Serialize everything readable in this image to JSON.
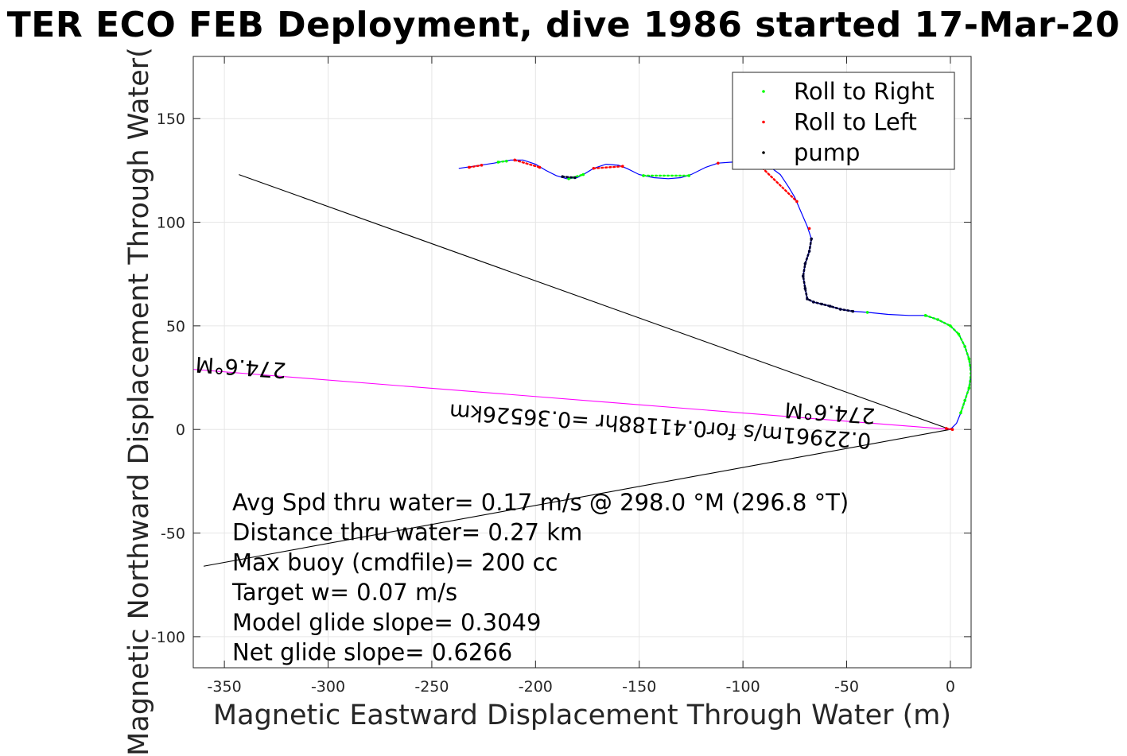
{
  "figure": {
    "title": "TER ECO FEB Deployment, dive 1986 started 17-Mar-20"
  },
  "chart_data": {
    "type": "line",
    "xlabel": "Magnetic Eastward Displacement Through Water (m)",
    "ylabel": "Magnetic Northward Displacement Through Water(",
    "xlim": [
      -365,
      10
    ],
    "ylim": [
      -115,
      180
    ],
    "xticks": [
      -350,
      -300,
      -250,
      -200,
      -150,
      -100,
      -50,
      0
    ],
    "yticks": [
      -100,
      -50,
      0,
      50,
      100,
      150
    ],
    "grid": true,
    "legend": {
      "placement": "top-right",
      "entries": [
        {
          "label": "Roll to Right",
          "color": "#00ff00"
        },
        {
          "label": "Roll to Left",
          "color": "#ff0000"
        },
        {
          "label": "pump",
          "color": "#000000"
        }
      ]
    },
    "track": {
      "color": "#0000ff",
      "points": [
        [
          -237,
          126
        ],
        [
          -230,
          127
        ],
        [
          -220,
          128.5
        ],
        [
          -212,
          130
        ],
        [
          -206,
          130
        ],
        [
          -200,
          128
        ],
        [
          -195,
          125
        ],
        [
          -190,
          122.5
        ],
        [
          -185,
          121
        ],
        [
          -180,
          121.5
        ],
        [
          -177,
          123
        ],
        [
          -172,
          126
        ],
        [
          -166,
          128
        ],
        [
          -160,
          127.5
        ],
        [
          -156,
          126
        ],
        [
          -150,
          123
        ],
        [
          -143,
          121.5
        ],
        [
          -136,
          121
        ],
        [
          -130,
          121.5
        ],
        [
          -125,
          123
        ],
        [
          -118,
          126.5
        ],
        [
          -112,
          128.5
        ],
        [
          -105,
          129
        ],
        [
          -98,
          128.5
        ],
        [
          -92,
          127.5
        ],
        [
          -86,
          126
        ],
        [
          -82,
          123
        ],
        [
          -78,
          117
        ],
        [
          -75,
          112
        ],
        [
          -72,
          105
        ],
        [
          -69,
          98
        ],
        [
          -67,
          92
        ],
        [
          -68,
          86
        ],
        [
          -70,
          80
        ],
        [
          -71,
          74
        ],
        [
          -70,
          68
        ],
        [
          -69,
          63
        ],
        [
          -66,
          61.5
        ],
        [
          -62,
          60.5
        ],
        [
          -58,
          59.5
        ],
        [
          -53,
          58
        ],
        [
          -47,
          57
        ],
        [
          -40,
          56.5
        ],
        [
          -30,
          55.5
        ],
        [
          -20,
          55
        ],
        [
          -12,
          55
        ],
        [
          -6,
          53
        ],
        [
          0,
          50
        ],
        [
          4,
          46
        ],
        [
          7,
          40
        ],
        [
          9,
          34
        ],
        [
          10,
          27
        ],
        [
          9,
          20
        ],
        [
          7,
          14
        ],
        [
          5,
          8
        ],
        [
          3,
          3
        ],
        [
          0,
          0
        ]
      ]
    },
    "pump_segments": [
      [
        [
          -187,
          122
        ],
        [
          -181,
          121.5
        ]
      ],
      [
        [
          -67,
          92
        ],
        [
          -68,
          86
        ],
        [
          -70,
          80
        ],
        [
          -71,
          74
        ],
        [
          -70,
          68
        ],
        [
          -69,
          63
        ],
        [
          -66,
          61.5
        ],
        [
          -62,
          60.5
        ],
        [
          -58,
          59.5
        ],
        [
          -53,
          58
        ],
        [
          -47,
          57
        ]
      ]
    ],
    "roll_right_segments": [
      [
        [
          -218,
          129
        ],
        [
          -214,
          129.5
        ]
      ],
      [
        [
          -184,
          121
        ],
        [
          -177,
          123
        ]
      ],
      [
        [
          -148,
          122.5
        ],
        [
          -126,
          122.5
        ]
      ],
      [
        [
          -40,
          56.5
        ]
      ],
      [
        [
          -12,
          55
        ],
        [
          -6,
          53
        ],
        [
          0,
          50
        ],
        [
          4,
          46
        ],
        [
          7,
          40
        ],
        [
          9,
          34
        ],
        [
          10,
          27
        ],
        [
          9,
          20
        ],
        [
          7,
          14
        ],
        [
          5,
          8
        ]
      ]
    ],
    "roll_left_segments": [
      [
        [
          -232,
          126.5
        ],
        [
          -226,
          127.5
        ]
      ],
      [
        [
          -210,
          130
        ],
        [
          -198,
          126.5
        ]
      ],
      [
        [
          -172,
          126
        ],
        [
          -158,
          127
        ]
      ],
      [
        [
          -112,
          128.5
        ]
      ],
      [
        [
          -92,
          127.5
        ],
        [
          -74,
          110
        ]
      ],
      [
        [
          -68,
          97
        ]
      ],
      [
        [
          -2,
          0.5
        ],
        [
          1,
          0
        ]
      ]
    ],
    "reference_lines": [
      {
        "name": "upper",
        "color": "#000000",
        "from": [
          -343,
          123
        ],
        "to": [
          0,
          0
        ]
      },
      {
        "name": "lower",
        "color": "#000000",
        "from": [
          -360,
          -66
        ],
        "to": [
          0,
          0
        ]
      },
      {
        "name": "heading",
        "color": "#ff00ff",
        "from": [
          -365,
          29
        ],
        "to": [
          0,
          0
        ]
      }
    ],
    "line_labels": [
      {
        "text": "274.6°M",
        "x": -320,
        "y": 32,
        "rotate": 184
      },
      {
        "text": "0.22961m/s for0.41188hr =0.36526km",
        "x": -38,
        "y": -2,
        "rotate": 184
      },
      {
        "text": "274.6°M",
        "x": -36,
        "y": 10,
        "rotate": 184
      }
    ],
    "annotations": [
      "Avg Spd thru water=  0.17 m/s @ 298.0 °M (296.8 °T)",
      "Distance thru water=  0.27 km",
      "Max buoy (cmdfile)= 200 cc",
      "Target w= 0.07 m/s",
      "Model glide slope= 0.3049",
      "Net glide slope= 0.6266"
    ]
  }
}
